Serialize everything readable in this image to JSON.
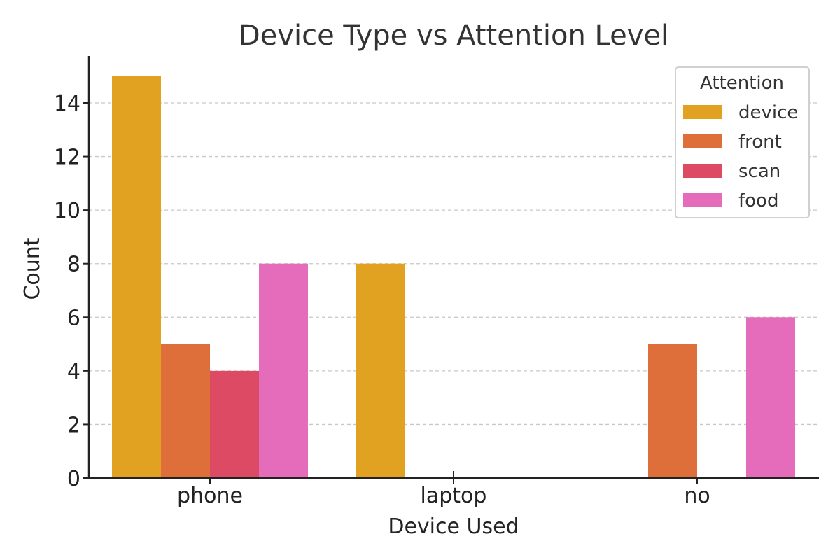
{
  "chart_data": {
    "type": "bar",
    "title": "Device Type vs Attention Level",
    "xlabel": "Device Used",
    "ylabel": "Count",
    "categories": [
      "phone",
      "laptop",
      "no"
    ],
    "ylim": [
      0,
      15.75
    ],
    "yticks": [
      0,
      2,
      4,
      6,
      8,
      10,
      12,
      14
    ],
    "grid": true,
    "grid_axis": "y",
    "legend_title": "Attention",
    "legend_position": "top-right",
    "series": [
      {
        "name": "device",
        "color": "#E0A220",
        "values": [
          15,
          8,
          0
        ]
      },
      {
        "name": "front",
        "color": "#DE6F3A",
        "values": [
          5,
          0,
          5
        ]
      },
      {
        "name": "scan",
        "color": "#DD4A63",
        "values": [
          4,
          0,
          0
        ]
      },
      {
        "name": "food",
        "color": "#E46CBB",
        "values": [
          8,
          0,
          6
        ]
      }
    ]
  }
}
